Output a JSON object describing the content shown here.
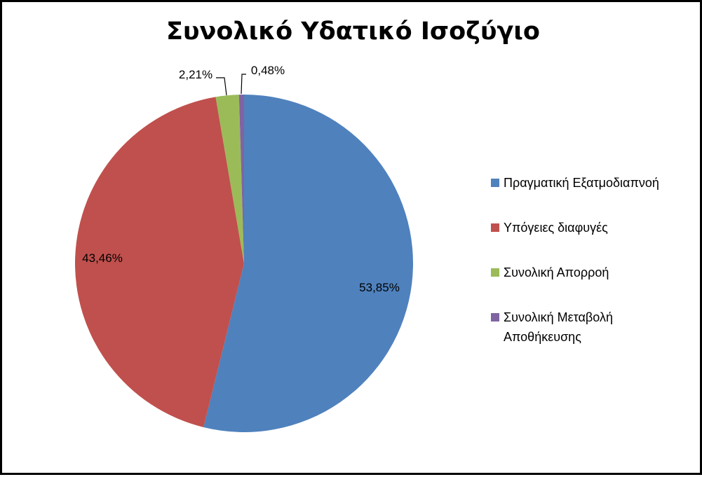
{
  "chart_data": {
    "type": "pie",
    "title": "Συνολικό Υδατικό Ισοζύγιο",
    "slices": [
      {
        "label": "Πραγματική Εξατμοδιαπνοή",
        "value": 53.85,
        "value_label": "53,85%",
        "color": "#4F81BD"
      },
      {
        "label": "Υπόγειες διαφυγές",
        "value": 43.46,
        "value_label": "43,46%",
        "color": "#C0504D"
      },
      {
        "label": "Συνολική Απορροή",
        "value": 2.21,
        "value_label": "2,21%",
        "color": "#9BBB59"
      },
      {
        "label": "Συνολική Μεταβολή Αποθήκευσης",
        "value": 0.48,
        "value_label": "0,48%",
        "color": "#8064A2"
      }
    ],
    "legend_position": "right"
  }
}
